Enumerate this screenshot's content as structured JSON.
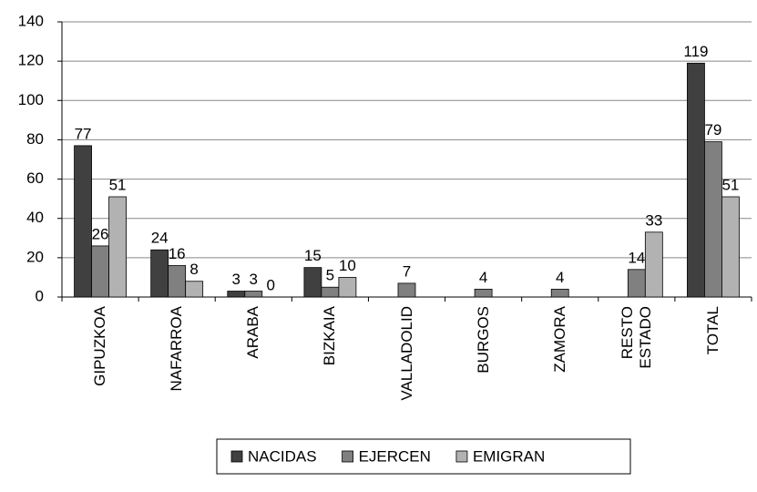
{
  "chart_data": {
    "type": "bar",
    "categories": [
      "GIPUZKOA",
      "NAFARROA",
      "ARABA",
      "BIZKAIA",
      "VALLADOLID",
      "BURGOS",
      "ZAMORA",
      "RESTO\nESTADO",
      "TOTAL"
    ],
    "series": [
      {
        "name": "NACIDAS",
        "color": "#404040",
        "values": [
          77,
          24,
          3,
          15,
          null,
          null,
          null,
          null,
          119
        ]
      },
      {
        "name": "EJERCEN",
        "color": "#808080",
        "values": [
          26,
          16,
          3,
          5,
          7,
          4,
          4,
          14,
          79
        ]
      },
      {
        "name": "EMIGRAN",
        "color": "#b2b2b2",
        "values": [
          51,
          8,
          0,
          10,
          null,
          null,
          null,
          33,
          51
        ]
      }
    ],
    "ylim": [
      0,
      140
    ],
    "yticks": [
      0,
      20,
      40,
      60,
      80,
      100,
      120,
      140
    ],
    "grid": true,
    "legend": "bottom"
  }
}
